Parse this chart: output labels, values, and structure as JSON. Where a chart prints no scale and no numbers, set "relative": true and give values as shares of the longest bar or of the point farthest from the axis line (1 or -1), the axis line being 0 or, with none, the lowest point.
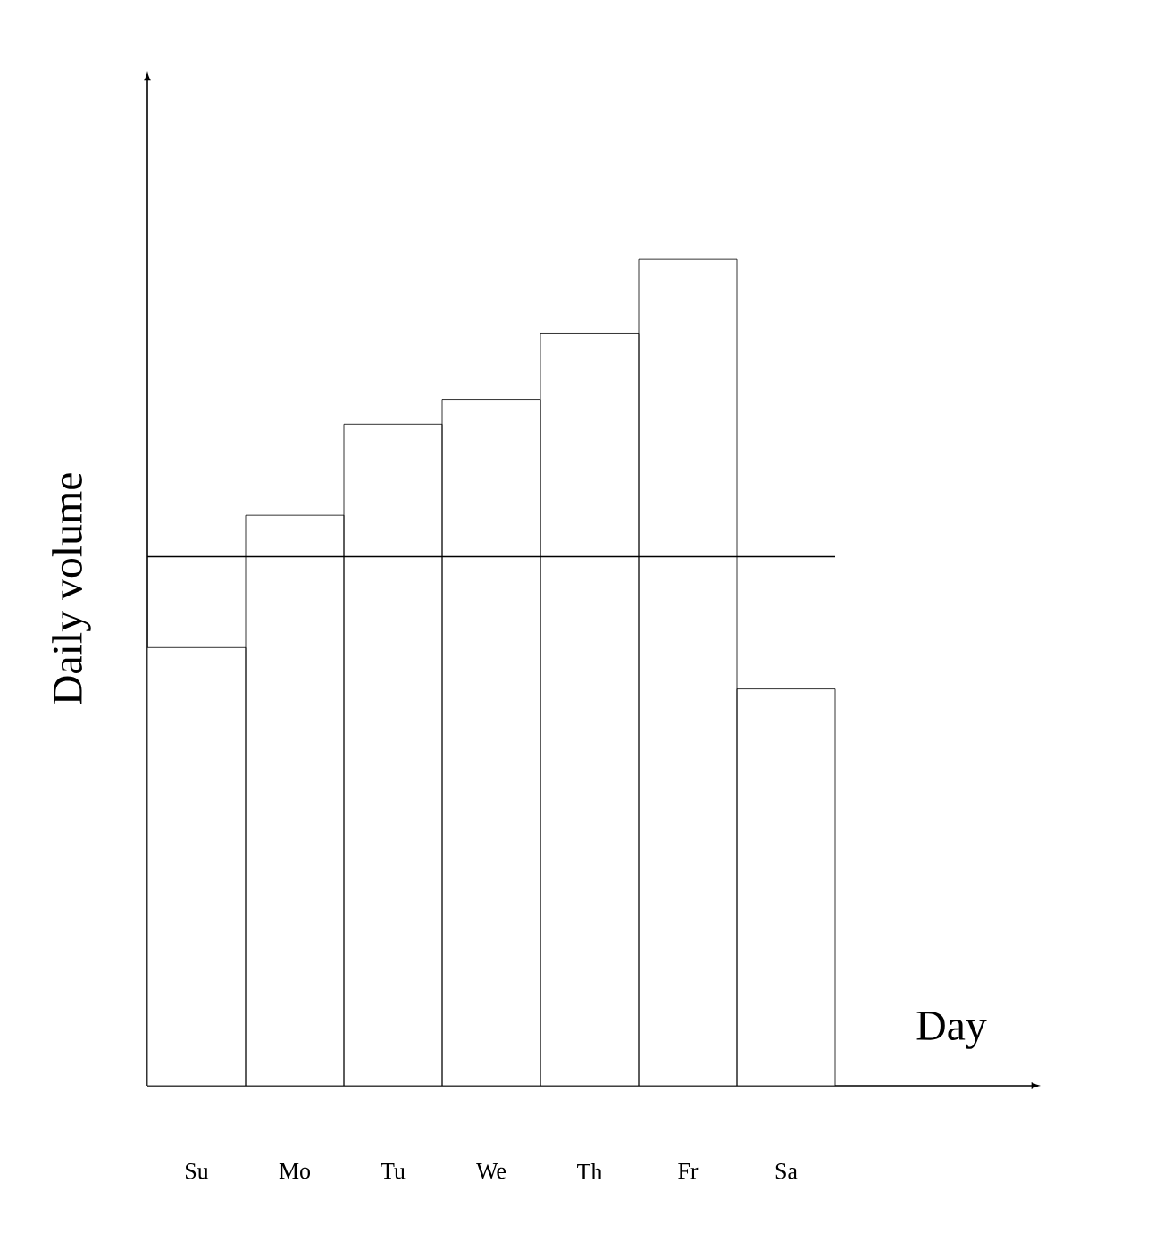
{
  "chart_data": {
    "type": "bar",
    "relative": true,
    "xlabel": "Day",
    "ylabel": "Daily volume",
    "categories": [
      "Su",
      "Mo",
      "Tu",
      "We",
      "Th",
      "Fr",
      "Sa"
    ],
    "values": [
      0.53,
      0.69,
      0.8,
      0.83,
      0.91,
      1,
      0.48
    ],
    "color": "#ffffff",
    "ref_lines": [
      {
        "axis": "y",
        "value": 0.64,
        "color": "#000000"
      }
    ],
    "grid": false
  }
}
